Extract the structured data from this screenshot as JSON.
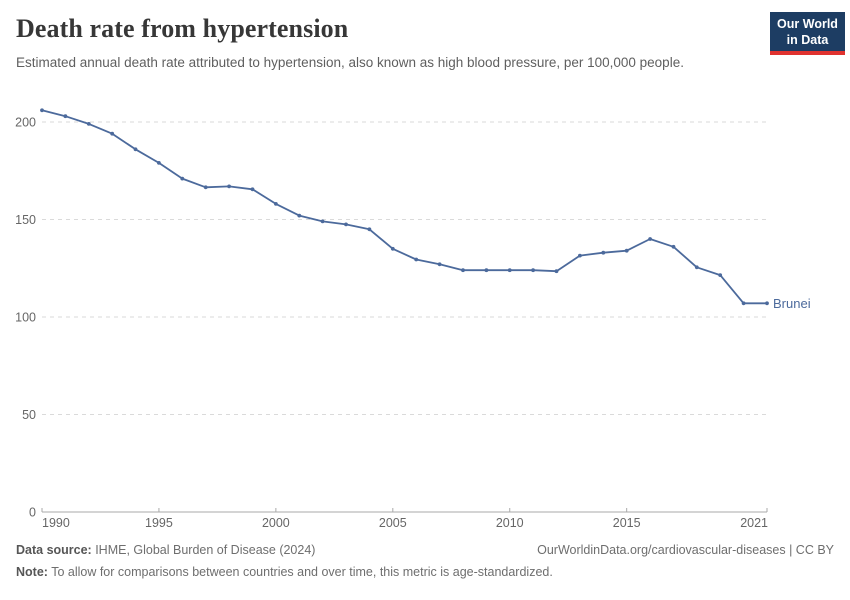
{
  "header": {
    "title": "Death rate from hypertension",
    "subtitle": "Estimated annual death rate attributed to hypertension, also known as high blood pressure, per 100,000 people.",
    "logo": {
      "line1": "Our World",
      "line2": "in Data"
    }
  },
  "chart_data": {
    "type": "line",
    "title": "Death rate from hypertension",
    "xlabel": "",
    "ylabel": "",
    "x": [
      1990,
      1991,
      1992,
      1993,
      1994,
      1995,
      1996,
      1997,
      1998,
      1999,
      2000,
      2001,
      2002,
      2003,
      2004,
      2005,
      2006,
      2007,
      2008,
      2009,
      2010,
      2011,
      2012,
      2013,
      2014,
      2015,
      2016,
      2017,
      2018,
      2019,
      2020,
      2021
    ],
    "series": [
      {
        "name": "Brunei",
        "values": [
          206,
          203,
          199,
          194,
          186,
          179,
          171,
          166.5,
          167,
          165.5,
          158,
          152,
          149,
          147.5,
          145,
          135,
          129.5,
          127,
          124,
          124,
          124,
          124,
          123.5,
          131.5,
          133,
          134,
          140,
          136,
          125.5,
          121.5,
          107,
          107
        ]
      }
    ],
    "x_ticks": [
      1990,
      1995,
      2000,
      2005,
      2010,
      2015,
      2021
    ],
    "y_ticks": [
      0,
      50,
      100,
      150,
      200
    ],
    "xlim": [
      1990,
      2021
    ],
    "ylim": [
      0,
      215
    ],
    "grid": "horizontal-dashed",
    "legend_position": "end-of-line-label",
    "entity_label": "Brunei"
  },
  "footer": {
    "source_label": "Data source:",
    "source_text": " IHME, Global Burden of Disease (2024)",
    "link_text": "OurWorldinData.org/cardiovascular-diseases | CC BY",
    "note_label": "Note:",
    "note_text": " To allow for comparisons between countries and over time, this metric is age-standardized."
  },
  "colors": {
    "line": "#4C6A9C",
    "grid": "#dadada",
    "axis": "#a9a9a9",
    "tick_text": "#666666",
    "logo_bg": "#1d3d63",
    "logo_stripe": "#e0322f"
  }
}
